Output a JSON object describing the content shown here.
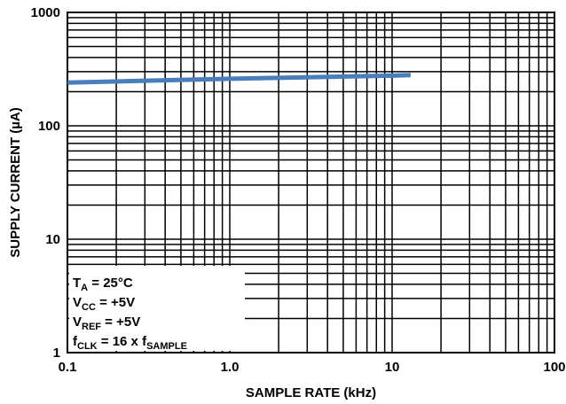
{
  "chart_data": {
    "type": "line",
    "xlabel": "SAMPLE RATE (kHz)",
    "ylabel": "SUPPLY CURRENT (µA)",
    "xscale": "log",
    "yscale": "log",
    "xlim": [
      0.1,
      100
    ],
    "ylim": [
      1,
      1000
    ],
    "grid": true,
    "series_color": "#4a7ebb",
    "xticks": [
      "0.1",
      "1.0",
      "10",
      "100"
    ],
    "yticks": [
      "1",
      "10",
      "100",
      "1000"
    ],
    "series": [
      {
        "x": [
          0.1,
          0.3,
          1.0,
          3.0,
          10,
          13
        ],
        "y": [
          240,
          250,
          260,
          268,
          277,
          280
        ]
      }
    ],
    "conditions": [
      {
        "main": "T",
        "sub": "A",
        "rest": " = 25°C"
      },
      {
        "main": "V",
        "sub": "CC",
        "rest": " = +5V"
      },
      {
        "main": "V",
        "sub": "REF",
        "rest": " = +5V"
      },
      {
        "main": "f",
        "sub": "CLK",
        "rest": " = 16 x f",
        "sub2": "SAMPLE"
      }
    ]
  }
}
